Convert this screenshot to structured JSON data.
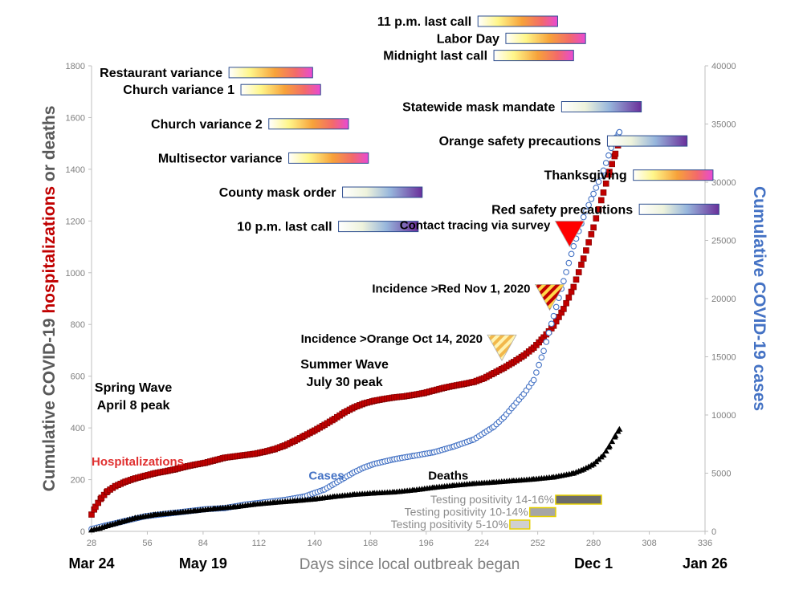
{
  "chart_data": {
    "type": "line",
    "xlabel": "Days since local outbreak began",
    "ylabel_left": {
      "parts": [
        {
          "text": "Cumulative COVID-19 ",
          "color": "#595959"
        },
        {
          "text": "hospitalizations",
          "color": "#c00000"
        },
        {
          "text": " or deaths",
          "color": "#595959"
        }
      ]
    },
    "ylabel_right": "Cumulative COVID-19 cases",
    "xlim": [
      28,
      336
    ],
    "ylim_left": [
      0,
      1800
    ],
    "ylim_right": [
      0,
      40000
    ],
    "x_ticks": [
      "28",
      "56",
      "84",
      "112",
      "140",
      "168",
      "196",
      "224",
      "252",
      "280",
      "308",
      "336"
    ],
    "y_left_ticks": [
      "0",
      "200",
      "400",
      "600",
      "800",
      "1000",
      "1200",
      "1400",
      "1600",
      "1800"
    ],
    "y_right_ticks": [
      "0",
      "5000",
      "10000",
      "15000",
      "20000",
      "25000",
      "30000",
      "35000",
      "40000"
    ],
    "date_labels": [
      {
        "text": "Mar 24",
        "x": 28
      },
      {
        "text": "May 19",
        "x": 84
      },
      {
        "text": "Dec 1",
        "x": 280
      },
      {
        "text": "Jan 26",
        "x": 336
      }
    ],
    "series": [
      {
        "name": "Hospitalizations",
        "axis": "left",
        "color": "#c00000",
        "points": [
          [
            28,
            65
          ],
          [
            30,
            95
          ],
          [
            33,
            130
          ],
          [
            36,
            155
          ],
          [
            40,
            175
          ],
          [
            45,
            192
          ],
          [
            50,
            205
          ],
          [
            55,
            215
          ],
          [
            60,
            225
          ],
          [
            65,
            232
          ],
          [
            70,
            240
          ],
          [
            75,
            250
          ],
          [
            80,
            258
          ],
          [
            85,
            265
          ],
          [
            90,
            275
          ],
          [
            95,
            285
          ],
          [
            100,
            290
          ],
          [
            105,
            295
          ],
          [
            110,
            300
          ],
          [
            115,
            308
          ],
          [
            120,
            318
          ],
          [
            125,
            332
          ],
          [
            130,
            350
          ],
          [
            135,
            370
          ],
          [
            140,
            390
          ],
          [
            145,
            412
          ],
          [
            150,
            435
          ],
          [
            155,
            460
          ],
          [
            160,
            480
          ],
          [
            165,
            495
          ],
          [
            170,
            505
          ],
          [
            175,
            512
          ],
          [
            180,
            518
          ],
          [
            185,
            522
          ],
          [
            190,
            528
          ],
          [
            195,
            535
          ],
          [
            200,
            545
          ],
          [
            205,
            555
          ],
          [
            210,
            563
          ],
          [
            215,
            570
          ],
          [
            220,
            578
          ],
          [
            225,
            592
          ],
          [
            230,
            612
          ],
          [
            235,
            632
          ],
          [
            240,
            655
          ],
          [
            245,
            680
          ],
          [
            250,
            710
          ],
          [
            255,
            750
          ],
          [
            260,
            795
          ],
          [
            265,
            860
          ],
          [
            270,
            945
          ],
          [
            275,
            1055
          ],
          [
            280,
            1175
          ],
          [
            285,
            1310
          ],
          [
            288,
            1390
          ],
          [
            291,
            1460
          ],
          [
            293,
            1510
          ]
        ]
      },
      {
        "name": "Cases",
        "axis": "right",
        "color": "#4472c4",
        "points": [
          [
            28,
            200
          ],
          [
            35,
            500
          ],
          [
            45,
            900
          ],
          [
            55,
            1300
          ],
          [
            65,
            1500
          ],
          [
            75,
            1700
          ],
          [
            85,
            1900
          ],
          [
            95,
            2000
          ],
          [
            105,
            2300
          ],
          [
            115,
            2500
          ],
          [
            125,
            2700
          ],
          [
            135,
            3000
          ],
          [
            145,
            3600
          ],
          [
            150,
            4100
          ],
          [
            155,
            4600
          ],
          [
            160,
            5100
          ],
          [
            165,
            5500
          ],
          [
            170,
            5800
          ],
          [
            180,
            6200
          ],
          [
            190,
            6500
          ],
          [
            200,
            6800
          ],
          [
            210,
            7300
          ],
          [
            220,
            7900
          ],
          [
            230,
            9000
          ],
          [
            235,
            9800
          ],
          [
            240,
            10800
          ],
          [
            245,
            11800
          ],
          [
            250,
            13000
          ],
          [
            255,
            15500
          ],
          [
            260,
            18500
          ],
          [
            265,
            21500
          ],
          [
            270,
            24500
          ],
          [
            275,
            27000
          ],
          [
            280,
            29000
          ],
          [
            285,
            31000
          ],
          [
            290,
            33500
          ],
          [
            293,
            34300
          ]
        ]
      },
      {
        "name": "Deaths",
        "axis": "left",
        "color": "#000000",
        "points": [
          [
            28,
            5
          ],
          [
            32,
            12
          ],
          [
            36,
            22
          ],
          [
            42,
            35
          ],
          [
            50,
            52
          ],
          [
            60,
            65
          ],
          [
            70,
            72
          ],
          [
            80,
            80
          ],
          [
            90,
            88
          ],
          [
            100,
            95
          ],
          [
            110,
            105
          ],
          [
            120,
            112
          ],
          [
            130,
            118
          ],
          [
            140,
            125
          ],
          [
            150,
            135
          ],
          [
            160,
            143
          ],
          [
            170,
            148
          ],
          [
            180,
            152
          ],
          [
            190,
            160
          ],
          [
            200,
            170
          ],
          [
            210,
            178
          ],
          [
            220,
            185
          ],
          [
            230,
            190
          ],
          [
            240,
            196
          ],
          [
            250,
            202
          ],
          [
            260,
            210
          ],
          [
            270,
            225
          ],
          [
            275,
            240
          ],
          [
            280,
            260
          ],
          [
            285,
            295
          ],
          [
            288,
            330
          ],
          [
            291,
            370
          ],
          [
            293,
            395
          ]
        ]
      }
    ],
    "series_labels": [
      {
        "text": "Hospitalizations",
        "color": "#e03030",
        "x": 28,
        "y": 270
      },
      {
        "text": "Cases",
        "color": "#4472c4",
        "x": 137,
        "y": 215
      },
      {
        "text": "Deaths",
        "color": "#000000",
        "x": 197,
        "y": 215
      }
    ],
    "waves": [
      {
        "lines": [
          "Spring Wave",
          "April 8 peak"
        ],
        "x": 49,
        "y": 540
      },
      {
        "lines": [
          "Summer Wave",
          "July 30 peak"
        ],
        "x": 155,
        "y": 630
      }
    ],
    "policy_events": [
      {
        "label": "11 p.m. last call",
        "start": 222,
        "end": 262,
        "gradient": "warm"
      },
      {
        "label": "Labor Day",
        "start": 236,
        "end": 276,
        "gradient": "warm"
      },
      {
        "label": "Midnight last call",
        "start": 230,
        "end": 270,
        "gradient": "warm"
      },
      {
        "label": "Restaurant variance",
        "start": 97,
        "end": 139,
        "gradient": "warm"
      },
      {
        "label": "Church variance 1",
        "start": 103,
        "end": 143,
        "gradient": "warm"
      },
      {
        "label": "Statewide mask mandate",
        "start": 264,
        "end": 304,
        "gradient": "cool"
      },
      {
        "label": "Church variance 2",
        "start": 117,
        "end": 157,
        "gradient": "warm"
      },
      {
        "label": "Orange safety precautions",
        "start": 287,
        "end": 327,
        "gradient": "cool"
      },
      {
        "label": "Multisector variance",
        "start": 127,
        "end": 167,
        "gradient": "warm"
      },
      {
        "label": "Thanksgiving",
        "start": 300,
        "end": 340,
        "gradient": "warm"
      },
      {
        "label": "County mask order",
        "start": 154,
        "end": 194,
        "gradient": "cool"
      },
      {
        "label": "Red safety precautions",
        "start": 303,
        "end": 343,
        "gradient": "cool"
      },
      {
        "label": "10 p.m. last call",
        "start": 152,
        "end": 192,
        "gradient": "cool"
      }
    ],
    "markers": [
      {
        "label": "Contact tracing via survey",
        "x": 268,
        "y": 1150,
        "style": "red"
      },
      {
        "label": "Incidence >Red Nov 1, 2020",
        "x": 258,
        "y": 905,
        "style": "red-stripe"
      },
      {
        "label": "Incidence >Orange Oct 14, 2020",
        "x": 234,
        "y": 710,
        "style": "orange-stripe"
      }
    ],
    "testing_positivity": [
      {
        "label": "Testing positivity 14-16%",
        "start": 261,
        "end": 284,
        "color": "#6b6b6b"
      },
      {
        "label": "Testing positivity 10-14%",
        "start": 248,
        "end": 261,
        "color": "#a6a6a6"
      },
      {
        "label": "Testing positivity 5-10%",
        "start": 238,
        "end": 248,
        "color": "#d0d0d0"
      }
    ],
    "grid": false
  }
}
